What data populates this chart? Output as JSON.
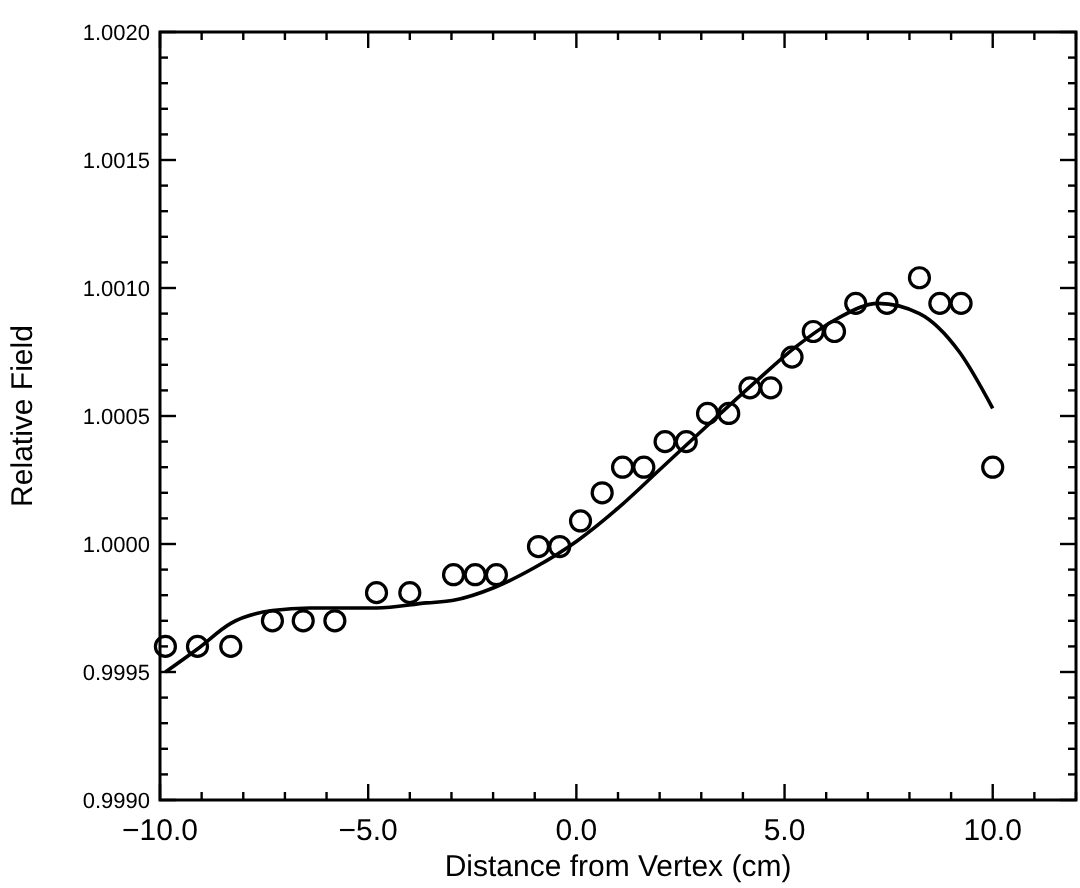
{
  "chart_data": {
    "type": "scatter",
    "xlabel": "Distance from Vertex (cm)",
    "ylabel": "Relative Field",
    "xlim": [
      -10,
      12
    ],
    "ylim": [
      0.999,
      1.002
    ],
    "xticks": [
      {
        "value": -10,
        "label": "−10.0"
      },
      {
        "value": -9,
        "label": null
      },
      {
        "value": -8,
        "label": null
      },
      {
        "value": -7,
        "label": null
      },
      {
        "value": -6,
        "label": null
      },
      {
        "value": -5,
        "label": "−5.0"
      },
      {
        "value": -4,
        "label": null
      },
      {
        "value": -3,
        "label": null
      },
      {
        "value": -2,
        "label": null
      },
      {
        "value": -1,
        "label": null
      },
      {
        "value": 0,
        "label": "0.0"
      },
      {
        "value": 1,
        "label": null
      },
      {
        "value": 2,
        "label": null
      },
      {
        "value": 3,
        "label": null
      },
      {
        "value": 4,
        "label": null
      },
      {
        "value": 5,
        "label": "5.0"
      },
      {
        "value": 6,
        "label": null
      },
      {
        "value": 7,
        "label": null
      },
      {
        "value": 8,
        "label": null
      },
      {
        "value": 9,
        "label": null
      },
      {
        "value": 10,
        "label": "10.0"
      },
      {
        "value": 11,
        "label": null
      },
      {
        "value": 12,
        "label": null
      }
    ],
    "yticks": [
      {
        "value": 0.999,
        "label": "0.9990"
      },
      {
        "value": 0.9991,
        "label": null
      },
      {
        "value": 0.9992,
        "label": null
      },
      {
        "value": 0.9993,
        "label": null
      },
      {
        "value": 0.9994,
        "label": null
      },
      {
        "value": 0.9995,
        "label": "0.9995"
      },
      {
        "value": 0.9996,
        "label": null
      },
      {
        "value": 0.9997,
        "label": null
      },
      {
        "value": 0.9998,
        "label": null
      },
      {
        "value": 0.9999,
        "label": null
      },
      {
        "value": 1,
        "label": "1.0000"
      },
      {
        "value": 1.0001,
        "label": null
      },
      {
        "value": 1.0002,
        "label": null
      },
      {
        "value": 1.0003,
        "label": null
      },
      {
        "value": 1.0004,
        "label": null
      },
      {
        "value": 1.0005,
        "label": "1.0005"
      },
      {
        "value": 1.0006,
        "label": null
      },
      {
        "value": 1.0007,
        "label": null
      },
      {
        "value": 1.0008,
        "label": null
      },
      {
        "value": 1.0009,
        "label": null
      },
      {
        "value": 1.001,
        "label": "1.0010"
      },
      {
        "value": 1.0011,
        "label": null
      },
      {
        "value": 1.0012,
        "label": null
      },
      {
        "value": 1.0013,
        "label": null
      },
      {
        "value": 1.0014,
        "label": null
      },
      {
        "value": 1.0015,
        "label": "1.0015"
      },
      {
        "value": 1.0016,
        "label": null
      },
      {
        "value": 1.0017,
        "label": null
      },
      {
        "value": 1.0018,
        "label": null
      },
      {
        "value": 1.0019,
        "label": null
      },
      {
        "value": 1.002,
        "label": "1.0020"
      }
    ],
    "grid": false,
    "series": [
      {
        "marker": "circle",
        "color": "#000000",
        "x": [
          -9.87,
          -9.1,
          -8.3,
          -7.3,
          -6.56,
          -5.8,
          -4.8,
          -4.0,
          -2.95,
          -2.43,
          -1.92,
          -0.91,
          -0.4,
          0.1,
          0.62,
          1.11,
          1.62,
          2.13,
          2.64,
          3.15,
          3.66,
          4.17,
          4.67,
          5.18,
          5.69,
          6.2,
          6.71,
          7.46,
          8.24,
          8.73,
          9.24,
          10.0
        ],
        "values": [
          0.9996,
          0.9996,
          0.9996,
          0.9997,
          0.9997,
          0.9997,
          0.99981,
          0.99981,
          0.99988,
          0.99988,
          0.99988,
          0.99999,
          0.99999,
          1.00009,
          1.0002,
          1.0003,
          1.0003,
          1.0004,
          1.0004,
          1.00051,
          1.00051,
          1.00061,
          1.00061,
          1.00073,
          1.00083,
          1.00083,
          1.00094,
          1.00094,
          1.00104,
          1.00094,
          1.00094,
          1.0003
        ]
      },
      {
        "type": "line",
        "marker": "none",
        "line_style": "solid",
        "color": "#000000",
        "x": [
          -9.87,
          -9.1,
          -8.3,
          -7.3,
          -6.4,
          -4.8,
          -3.6,
          -2.95,
          -1.97,
          -0.98,
          0.0,
          1.0,
          2.0,
          3.13,
          4.28,
          5.27,
          6.26,
          7.25,
          8.24,
          9.2,
          10.0
        ],
        "values": [
          0.9995,
          0.99959,
          0.99969,
          0.99974,
          0.99975,
          0.99975,
          0.99977,
          0.99978,
          0.99983,
          0.99991,
          1.00001,
          1.00014,
          1.00029,
          1.00046,
          1.00063,
          1.00077,
          1.00088,
          1.00094,
          1.0009,
          1.00075,
          1.00053
        ]
      }
    ]
  }
}
